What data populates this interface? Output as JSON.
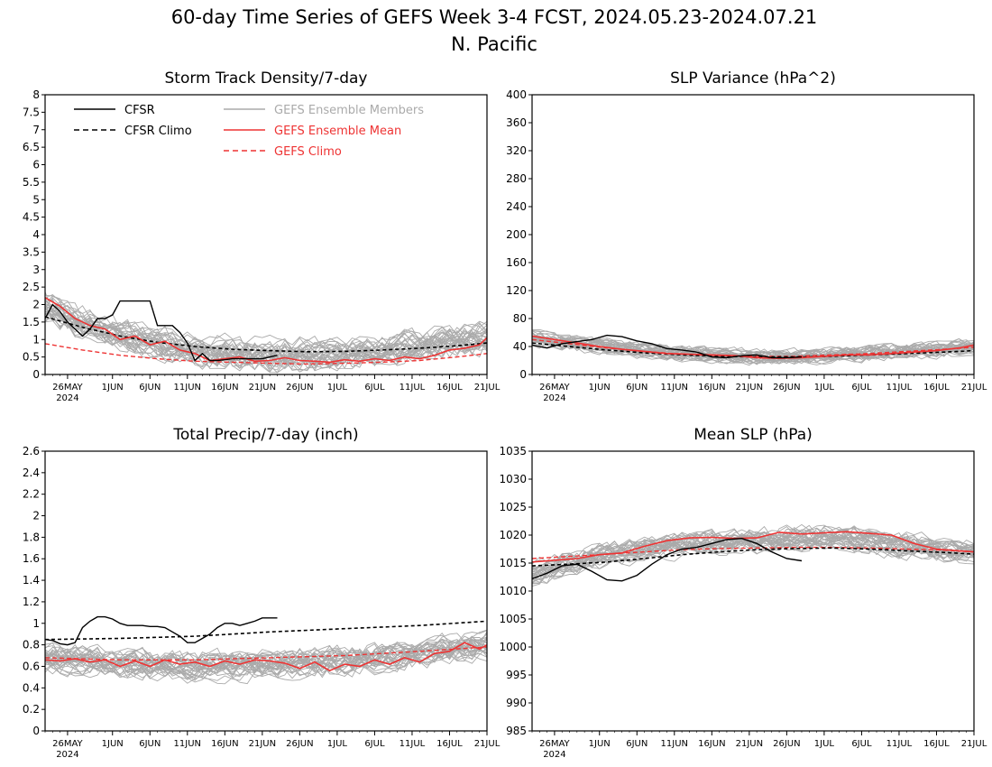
{
  "header": {
    "title_line1": "60-day Time Series of GEFS Week 3-4 FCST, 2024.05.23-2024.07.21",
    "title_line2": "N. Pacific"
  },
  "colors": {
    "cfsr": "#000000",
    "cfsr_climo": "#000000",
    "ens_members": "#aaaaaa",
    "ens_mean": "#ee3333",
    "gefs_climo": "#ee3333"
  },
  "legend": {
    "cfsr": "CFSR",
    "cfsr_climo": "CFSR Climo",
    "ens_members": "GEFS Ensemble Members",
    "ens_mean": "GEFS Ensemble Mean",
    "gefs_climo": "GEFS Climo"
  },
  "x_axis": {
    "tick_days": [
      3,
      9,
      14,
      19,
      24,
      29,
      34,
      39,
      44,
      49,
      54,
      59
    ],
    "tick_labels": [
      "26MAY",
      "1JUN",
      "6JUN",
      "11JUN",
      "16JUN",
      "21JUN",
      "26JUN",
      "1JUL",
      "6JUL",
      "11JUL",
      "16JUL",
      "21JUL"
    ],
    "year_label": "2024"
  },
  "chart_data": [
    {
      "type": "line",
      "title": "Storm Track Density/7-day",
      "ylim": [
        0,
        8
      ],
      "yticks": [
        "0",
        "0.5",
        "1",
        "1.5",
        "2",
        "2.5",
        "3",
        "3.5",
        "4",
        "4.5",
        "5",
        "5.5",
        "6",
        "6.5",
        "7",
        "7.5",
        "8"
      ],
      "show_legend": true,
      "member_center": [
        [
          0,
          2.0
        ],
        [
          5,
          1.45
        ],
        [
          10,
          1.2
        ],
        [
          15,
          0.9
        ],
        [
          20,
          0.7
        ],
        [
          25,
          0.6
        ],
        [
          30,
          0.55
        ],
        [
          35,
          0.55
        ],
        [
          40,
          0.6
        ],
        [
          45,
          0.7
        ],
        [
          50,
          0.85
        ],
        [
          55,
          1.0
        ],
        [
          59,
          1.1
        ]
      ],
      "member_spread": 0.55,
      "members_seed": 11,
      "series": [
        {
          "name": "CFSR",
          "x": [
            0,
            1,
            2,
            3,
            4,
            5,
            6,
            7,
            8,
            9,
            10,
            11,
            12,
            13,
            14,
            15,
            16,
            17,
            18,
            19,
            20,
            21,
            22,
            23,
            24,
            25,
            26,
            27,
            28,
            29,
            30,
            31
          ],
          "values": [
            1.6,
            2.0,
            1.8,
            1.5,
            1.3,
            1.1,
            1.3,
            1.6,
            1.6,
            1.7,
            2.1,
            2.1,
            2.1,
            2.1,
            2.1,
            1.4,
            1.4,
            1.4,
            1.2,
            0.9,
            0.4,
            0.6,
            0.4,
            0.4,
            0.42,
            0.45,
            0.45,
            0.45,
            0.45,
            0.45,
            0.5,
            0.55
          ]
        },
        {
          "name": "CFSR Climo",
          "x": [
            0,
            5,
            10,
            15,
            20,
            25,
            30,
            35,
            40,
            45,
            50,
            55,
            59
          ],
          "values": [
            1.65,
            1.35,
            1.1,
            0.92,
            0.8,
            0.72,
            0.68,
            0.65,
            0.66,
            0.7,
            0.75,
            0.82,
            0.9
          ]
        },
        {
          "name": "GEFS Ensemble Mean",
          "x": [
            0,
            2,
            4,
            6,
            8,
            10,
            12,
            14,
            16,
            18,
            20,
            22,
            24,
            26,
            28,
            30,
            32,
            34,
            36,
            38,
            40,
            42,
            44,
            46,
            48,
            50,
            52,
            54,
            56,
            58,
            59
          ],
          "values": [
            2.2,
            1.95,
            1.6,
            1.4,
            1.3,
            1.0,
            1.1,
            0.85,
            0.95,
            0.7,
            0.6,
            0.4,
            0.45,
            0.5,
            0.38,
            0.4,
            0.48,
            0.4,
            0.38,
            0.35,
            0.42,
            0.38,
            0.45,
            0.4,
            0.5,
            0.45,
            0.55,
            0.7,
            0.75,
            0.85,
            1.05
          ]
        },
        {
          "name": "GEFS Climo",
          "x": [
            0,
            5,
            10,
            15,
            20,
            25,
            30,
            35,
            40,
            45,
            50,
            55,
            59
          ],
          "values": [
            0.88,
            0.7,
            0.55,
            0.45,
            0.38,
            0.35,
            0.32,
            0.3,
            0.32,
            0.35,
            0.4,
            0.5,
            0.6
          ]
        }
      ]
    },
    {
      "type": "line",
      "title": "SLP Variance (hPa^2)",
      "ylim": [
        0,
        400
      ],
      "yticks": [
        "0",
        "40",
        "80",
        "120",
        "160",
        "200",
        "240",
        "280",
        "320",
        "360",
        "400"
      ],
      "show_legend": false,
      "member_center": [
        [
          0,
          52
        ],
        [
          5,
          44
        ],
        [
          10,
          40
        ],
        [
          15,
          35
        ],
        [
          20,
          30
        ],
        [
          25,
          27
        ],
        [
          30,
          25
        ],
        [
          35,
          25
        ],
        [
          40,
          27
        ],
        [
          45,
          30
        ],
        [
          50,
          33
        ],
        [
          55,
          36
        ],
        [
          59,
          40
        ]
      ],
      "member_spread": 13,
      "members_seed": 23,
      "series": [
        {
          "name": "CFSR",
          "x": [
            0,
            2,
            4,
            6,
            8,
            10,
            12,
            14,
            16,
            18,
            20,
            22,
            24,
            26,
            28,
            30,
            32,
            34,
            36
          ],
          "values": [
            42,
            38,
            44,
            47,
            50,
            56,
            54,
            48,
            44,
            37,
            35,
            32,
            25,
            24,
            27,
            28,
            24,
            24,
            25
          ]
        },
        {
          "name": "CFSR Climo",
          "x": [
            0,
            5,
            10,
            15,
            20,
            25,
            30,
            35,
            40,
            45,
            50,
            55,
            59
          ],
          "values": [
            45,
            40,
            35,
            31,
            28,
            26,
            25,
            25,
            26,
            28,
            30,
            32,
            34
          ]
        },
        {
          "name": "GEFS Ensemble Mean",
          "x": [
            0,
            3,
            6,
            9,
            12,
            15,
            18,
            21,
            24,
            27,
            30,
            33,
            36,
            39,
            42,
            45,
            48,
            51,
            54,
            57,
            59
          ],
          "values": [
            55,
            50,
            45,
            40,
            36,
            33,
            30,
            29,
            28,
            27,
            24,
            23,
            24,
            26,
            28,
            28,
            30,
            32,
            34,
            38,
            42
          ]
        },
        {
          "name": "GEFS Climo",
          "x": [
            0,
            5,
            10,
            15,
            20,
            25,
            30,
            35,
            40,
            45,
            50,
            55,
            59
          ],
          "values": [
            50,
            44,
            38,
            33,
            29,
            27,
            26,
            26,
            28,
            30,
            33,
            36,
            39
          ]
        }
      ]
    },
    {
      "type": "line",
      "title": "Total Precip/7-day (inch)",
      "ylim": [
        0,
        2.6
      ],
      "yticks": [
        "0",
        "0.2",
        "0.4",
        "0.6",
        "0.8",
        "1",
        "1.2",
        "1.4",
        "1.6",
        "1.8",
        "2",
        "2.2",
        "2.4",
        "2.6"
      ],
      "show_legend": false,
      "member_center": [
        [
          0,
          0.68
        ],
        [
          10,
          0.62
        ],
        [
          20,
          0.6
        ],
        [
          30,
          0.62
        ],
        [
          40,
          0.65
        ],
        [
          50,
          0.72
        ],
        [
          59,
          0.8
        ]
      ],
      "member_spread": 0.16,
      "members_seed": 37,
      "series": [
        {
          "name": "CFSR",
          "x": [
            0,
            1,
            2,
            3,
            4,
            5,
            6,
            7,
            8,
            9,
            10,
            11,
            12,
            13,
            14,
            15,
            16,
            17,
            18,
            19,
            20,
            21,
            22,
            23,
            24,
            25,
            26,
            27,
            28,
            29,
            30,
            31
          ],
          "values": [
            0.85,
            0.84,
            0.81,
            0.8,
            0.82,
            0.96,
            1.02,
            1.06,
            1.06,
            1.04,
            1.0,
            0.98,
            0.98,
            0.98,
            0.97,
            0.97,
            0.96,
            0.92,
            0.88,
            0.82,
            0.82,
            0.86,
            0.9,
            0.96,
            1.0,
            1.0,
            0.98,
            1.0,
            1.02,
            1.05,
            1.05,
            1.05
          ]
        },
        {
          "name": "CFSR Climo",
          "x": [
            0,
            10,
            20,
            30,
            40,
            50,
            59
          ],
          "values": [
            0.85,
            0.86,
            0.88,
            0.92,
            0.95,
            0.98,
            1.02
          ]
        },
        {
          "name": "GEFS Ensemble Mean",
          "x": [
            0,
            2,
            4,
            6,
            8,
            10,
            12,
            14,
            16,
            18,
            20,
            22,
            24,
            26,
            28,
            30,
            32,
            34,
            36,
            38,
            40,
            42,
            44,
            46,
            48,
            50,
            52,
            54,
            56,
            58,
            59
          ],
          "values": [
            0.66,
            0.65,
            0.67,
            0.64,
            0.66,
            0.6,
            0.65,
            0.6,
            0.66,
            0.62,
            0.64,
            0.6,
            0.65,
            0.62,
            0.66,
            0.65,
            0.63,
            0.58,
            0.64,
            0.56,
            0.62,
            0.6,
            0.66,
            0.62,
            0.68,
            0.64,
            0.72,
            0.74,
            0.82,
            0.76,
            0.8
          ]
        },
        {
          "name": "GEFS Climo",
          "x": [
            0,
            10,
            20,
            30,
            40,
            50,
            59
          ],
          "values": [
            0.68,
            0.66,
            0.66,
            0.68,
            0.7,
            0.74,
            0.78
          ]
        }
      ]
    },
    {
      "type": "line",
      "title": "Mean SLP (hPa)",
      "ylim": [
        985,
        1035
      ],
      "yticks": [
        "985",
        "990",
        "995",
        "1000",
        "1005",
        "1010",
        "1015",
        "1020",
        "1025",
        "1030",
        "1035"
      ],
      "show_legend": false,
      "member_center": [
        [
          0,
          1013
        ],
        [
          5,
          1015
        ],
        [
          10,
          1016.5
        ],
        [
          15,
          1017.5
        ],
        [
          20,
          1018.3
        ],
        [
          25,
          1018.6
        ],
        [
          30,
          1019
        ],
        [
          35,
          1019.3
        ],
        [
          40,
          1019.5
        ],
        [
          45,
          1019
        ],
        [
          50,
          1018
        ],
        [
          55,
          1017.2
        ],
        [
          59,
          1017
        ]
      ],
      "member_spread": 2.6,
      "members_seed": 53,
      "series": [
        {
          "name": "CFSR",
          "x": [
            0,
            2,
            4,
            6,
            8,
            10,
            12,
            14,
            16,
            18,
            20,
            22,
            24,
            26,
            28,
            30,
            32,
            34,
            36
          ],
          "values": [
            1012.2,
            1013.2,
            1014.5,
            1014.8,
            1013.5,
            1012,
            1011.8,
            1012.8,
            1014.8,
            1016.5,
            1017.5,
            1017.8,
            1018.5,
            1019.2,
            1019.4,
            1018.5,
            1017,
            1015.8,
            1015.4
          ]
        },
        {
          "name": "CFSR Climo",
          "x": [
            0,
            5,
            10,
            15,
            20,
            25,
            30,
            35,
            40,
            45,
            50,
            55,
            59
          ],
          "values": [
            1014.5,
            1014.8,
            1015.2,
            1015.8,
            1016.5,
            1017,
            1017.4,
            1017.6,
            1017.7,
            1017.5,
            1017.2,
            1016.9,
            1016.6
          ]
        },
        {
          "name": "GEFS Ensemble Mean",
          "x": [
            0,
            3,
            6,
            9,
            12,
            15,
            18,
            21,
            24,
            27,
            30,
            33,
            36,
            39,
            42,
            45,
            48,
            51,
            54,
            57,
            59
          ],
          "values": [
            1015.2,
            1015.5,
            1015.8,
            1016.5,
            1016.8,
            1018,
            1019,
            1019.5,
            1019.6,
            1019.4,
            1019.5,
            1020.5,
            1020.2,
            1020.4,
            1020.6,
            1020.3,
            1020,
            1018.5,
            1017.5,
            1017.2,
            1017
          ]
        },
        {
          "name": "GEFS Climo",
          "x": [
            0,
            5,
            10,
            15,
            20,
            25,
            30,
            35,
            40,
            45,
            50,
            55,
            59
          ],
          "values": [
            1015.8,
            1016.2,
            1016.6,
            1017,
            1017.4,
            1017.6,
            1017.7,
            1017.8,
            1017.8,
            1017.7,
            1017.5,
            1017.3,
            1017
          ]
        }
      ]
    }
  ]
}
